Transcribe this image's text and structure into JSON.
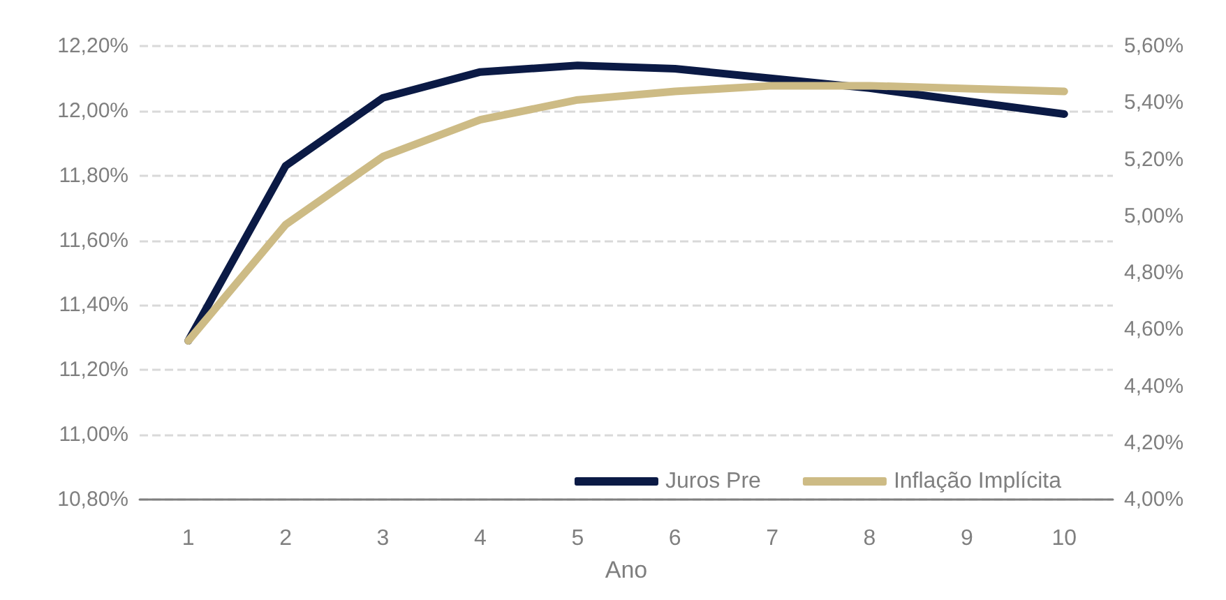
{
  "chart_data": {
    "type": "line",
    "xlabel": "Ano",
    "categories": [
      "1",
      "2",
      "3",
      "4",
      "5",
      "6",
      "7",
      "8",
      "9",
      "10"
    ],
    "series": [
      {
        "name": "Juros Pre",
        "color": "#0b1a45",
        "values": [
          11.29,
          11.83,
          12.04,
          12.12,
          12.14,
          12.13,
          12.1,
          12.07,
          12.03,
          11.99
        ]
      },
      {
        "name": "Inflação Implícita",
        "color": "#cdbb85",
        "axis": "y2",
        "values": [
          4.56,
          4.97,
          5.21,
          5.34,
          5.41,
          5.44,
          5.46,
          5.46,
          5.45,
          5.44
        ]
      }
    ],
    "ylim": [
      10.8,
      12.2
    ],
    "yticks": [
      {
        "value": 10.8,
        "label": "10,80%"
      },
      {
        "value": 11.0,
        "label": "11,00%"
      },
      {
        "value": 11.2,
        "label": "11,20%"
      },
      {
        "value": 11.4,
        "label": "11,40%"
      },
      {
        "value": 11.6,
        "label": "11,60%"
      },
      {
        "value": 11.8,
        "label": "11,80%"
      },
      {
        "value": 12.0,
        "label": "12,00%"
      },
      {
        "value": 12.2,
        "label": "12,20%"
      }
    ],
    "y2lim": [
      4.0,
      5.6
    ],
    "y2ticks": [
      {
        "value": 4.0,
        "label": "4,00%"
      },
      {
        "value": 4.2,
        "label": "4,20%"
      },
      {
        "value": 4.4,
        "label": "4,40%"
      },
      {
        "value": 4.6,
        "label": "4,60%"
      },
      {
        "value": 4.8,
        "label": "4,80%"
      },
      {
        "value": 5.0,
        "label": "5,00%"
      },
      {
        "value": 5.2,
        "label": "5,20%"
      },
      {
        "value": 5.4,
        "label": "5,40%"
      },
      {
        "value": 5.6,
        "label": "5,60%"
      }
    ],
    "grid": "y",
    "legend": "bottom right",
    "marker": "none",
    "line_style": "solid"
  }
}
